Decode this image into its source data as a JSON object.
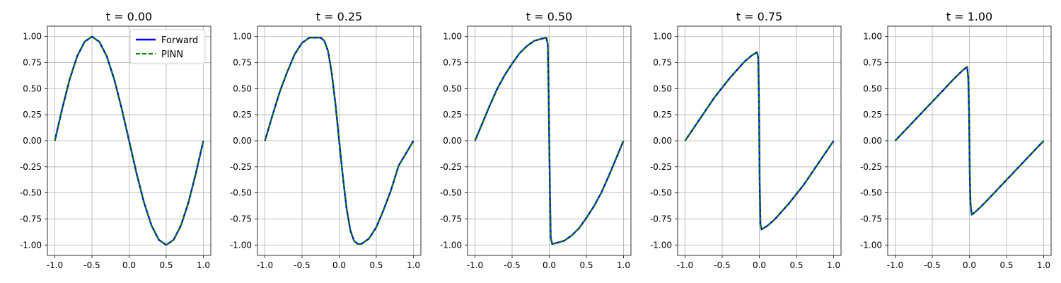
{
  "chart_data": [
    {
      "type": "line",
      "title": "t = 0.00",
      "xlabel": "",
      "ylabel": "",
      "xlim": [
        -1.1,
        1.1
      ],
      "ylim": [
        -1.1,
        1.1
      ],
      "grid": true,
      "x_ticks": [
        "-1.0",
        "-0.5",
        "0.0",
        "0.5",
        "1.0"
      ],
      "y_ticks": [
        "1.00",
        "0.75",
        "0.50",
        "0.25",
        "0.00",
        "-0.25",
        "-0.50",
        "-0.75",
        "-1.00"
      ],
      "legend": {
        "placement": "top-right",
        "entries": [
          "Forward",
          "PINN"
        ]
      },
      "series": [
        {
          "name": "Forward",
          "color": "#0000ff",
          "style": "solid",
          "x": [
            -1.0,
            -0.9,
            -0.8,
            -0.7,
            -0.6,
            -0.5,
            -0.4,
            -0.3,
            -0.2,
            -0.1,
            0.0,
            0.1,
            0.2,
            0.3,
            0.4,
            0.5,
            0.6,
            0.7,
            0.8,
            0.9,
            1.0
          ],
          "y": [
            0.0,
            0.31,
            0.59,
            0.81,
            0.95,
            1.0,
            0.95,
            0.81,
            0.59,
            0.31,
            0.0,
            -0.31,
            -0.59,
            -0.81,
            -0.95,
            -1.0,
            -0.95,
            -0.81,
            -0.59,
            -0.31,
            0.0
          ]
        },
        {
          "name": "PINN",
          "color": "#008000",
          "style": "dashed",
          "x": [
            -1.0,
            -0.9,
            -0.8,
            -0.7,
            -0.6,
            -0.5,
            -0.4,
            -0.3,
            -0.2,
            -0.1,
            0.0,
            0.1,
            0.2,
            0.3,
            0.4,
            0.5,
            0.6,
            0.7,
            0.8,
            0.9,
            1.0
          ],
          "y": [
            0.0,
            0.31,
            0.59,
            0.81,
            0.95,
            1.0,
            0.95,
            0.81,
            0.59,
            0.31,
            0.0,
            -0.31,
            -0.59,
            -0.81,
            -0.95,
            -1.0,
            -0.95,
            -0.81,
            -0.59,
            -0.31,
            0.0
          ]
        }
      ]
    },
    {
      "type": "line",
      "title": "t = 0.25",
      "xlabel": "",
      "ylabel": "",
      "xlim": [
        -1.1,
        1.1
      ],
      "ylim": [
        -1.1,
        1.1
      ],
      "grid": true,
      "x_ticks": [
        "-1.0",
        "-0.5",
        "0.0",
        "0.5",
        "1.0"
      ],
      "y_ticks": [
        "1.00",
        "0.75",
        "0.50",
        "0.25",
        "0.00",
        "-0.25",
        "-0.50",
        "-0.75",
        "-1.00"
      ],
      "series": [
        {
          "name": "Forward",
          "color": "#0000ff",
          "style": "solid",
          "x": [
            -1.0,
            -0.9,
            -0.8,
            -0.7,
            -0.6,
            -0.5,
            -0.4,
            -0.3,
            -0.25,
            -0.2,
            -0.15,
            -0.1,
            -0.05,
            0.0,
            0.05,
            0.1,
            0.15,
            0.2,
            0.25,
            0.3,
            0.4,
            0.5,
            0.6,
            0.7,
            0.8,
            0.9,
            1.0
          ],
          "y": [
            0.0,
            0.24,
            0.47,
            0.66,
            0.83,
            0.94,
            0.99,
            0.99,
            0.99,
            0.96,
            0.86,
            0.65,
            0.35,
            0.0,
            -0.35,
            -0.65,
            -0.86,
            -0.96,
            -0.99,
            -0.99,
            -0.94,
            -0.83,
            -0.66,
            -0.47,
            -0.24,
            -0.12,
            0.0
          ]
        },
        {
          "name": "PINN",
          "color": "#008000",
          "style": "dashed",
          "x": [
            -1.0,
            -0.9,
            -0.8,
            -0.7,
            -0.6,
            -0.5,
            -0.4,
            -0.3,
            -0.25,
            -0.2,
            -0.15,
            -0.1,
            -0.05,
            0.0,
            0.05,
            0.1,
            0.15,
            0.2,
            0.25,
            0.3,
            0.4,
            0.5,
            0.6,
            0.7,
            0.8,
            0.9,
            1.0
          ],
          "y": [
            0.0,
            0.24,
            0.47,
            0.66,
            0.83,
            0.94,
            0.99,
            0.99,
            0.99,
            0.96,
            0.86,
            0.65,
            0.35,
            0.0,
            -0.35,
            -0.65,
            -0.86,
            -0.96,
            -0.99,
            -0.99,
            -0.94,
            -0.83,
            -0.66,
            -0.47,
            -0.24,
            -0.12,
            0.0
          ]
        }
      ]
    },
    {
      "type": "line",
      "title": "t = 0.50",
      "xlabel": "",
      "ylabel": "",
      "xlim": [
        -1.1,
        1.1
      ],
      "ylim": [
        -1.1,
        1.1
      ],
      "grid": true,
      "x_ticks": [
        "-1.0",
        "-0.5",
        "0.0",
        "0.5",
        "1.0"
      ],
      "y_ticks": [
        "1.00",
        "0.75",
        "0.50",
        "0.25",
        "0.00",
        "-0.25",
        "-0.50",
        "-0.75",
        "-1.00"
      ],
      "series": [
        {
          "name": "Forward",
          "color": "#0000ff",
          "style": "solid",
          "x": [
            -1.0,
            -0.9,
            -0.8,
            -0.7,
            -0.6,
            -0.5,
            -0.4,
            -0.3,
            -0.2,
            -0.1,
            -0.04,
            -0.02,
            -0.01,
            0.0,
            0.01,
            0.02,
            0.04,
            0.1,
            0.2,
            0.3,
            0.4,
            0.5,
            0.6,
            0.7,
            0.8,
            0.9,
            1.0
          ],
          "y": [
            0.0,
            0.17,
            0.34,
            0.5,
            0.63,
            0.74,
            0.84,
            0.91,
            0.96,
            0.98,
            0.99,
            0.93,
            0.5,
            0.0,
            -0.5,
            -0.93,
            -0.99,
            -0.98,
            -0.96,
            -0.91,
            -0.84,
            -0.74,
            -0.63,
            -0.5,
            -0.34,
            -0.17,
            0.0
          ]
        },
        {
          "name": "PINN",
          "color": "#008000",
          "style": "dashed",
          "x": [
            -1.0,
            -0.9,
            -0.8,
            -0.7,
            -0.6,
            -0.5,
            -0.4,
            -0.3,
            -0.2,
            -0.1,
            -0.04,
            -0.02,
            -0.01,
            0.0,
            0.01,
            0.02,
            0.04,
            0.1,
            0.2,
            0.3,
            0.4,
            0.5,
            0.6,
            0.7,
            0.8,
            0.9,
            1.0
          ],
          "y": [
            0.0,
            0.17,
            0.34,
            0.5,
            0.63,
            0.74,
            0.84,
            0.91,
            0.96,
            0.98,
            0.99,
            0.93,
            0.5,
            0.0,
            -0.5,
            -0.93,
            -0.99,
            -0.98,
            -0.96,
            -0.91,
            -0.84,
            -0.74,
            -0.63,
            -0.5,
            -0.34,
            -0.17,
            0.0
          ]
        }
      ]
    },
    {
      "type": "line",
      "title": "t = 0.75",
      "xlabel": "",
      "ylabel": "",
      "xlim": [
        -1.1,
        1.1
      ],
      "ylim": [
        -1.1,
        1.1
      ],
      "grid": true,
      "x_ticks": [
        "-1.0",
        "-0.5",
        "0.0",
        "0.5",
        "1.0"
      ],
      "y_ticks": [
        "1.00",
        "0.75",
        "0.50",
        "0.25",
        "0.00",
        "-0.25",
        "-0.50",
        "-0.75",
        "-1.00"
      ],
      "series": [
        {
          "name": "Forward",
          "color": "#0000ff",
          "style": "solid",
          "x": [
            -1.0,
            -0.8,
            -0.6,
            -0.4,
            -0.2,
            -0.1,
            -0.03,
            -0.015,
            -0.005,
            0.0,
            0.005,
            0.015,
            0.03,
            0.1,
            0.2,
            0.4,
            0.6,
            0.8,
            1.0
          ],
          "y": [
            0.0,
            0.21,
            0.42,
            0.6,
            0.76,
            0.82,
            0.85,
            0.8,
            0.4,
            0.0,
            -0.4,
            -0.8,
            -0.85,
            -0.82,
            -0.76,
            -0.6,
            -0.42,
            -0.21,
            0.0
          ]
        },
        {
          "name": "PINN",
          "color": "#008000",
          "style": "dashed",
          "x": [
            -1.0,
            -0.8,
            -0.6,
            -0.4,
            -0.2,
            -0.1,
            -0.03,
            -0.015,
            -0.005,
            0.0,
            0.005,
            0.015,
            0.03,
            0.1,
            0.2,
            0.4,
            0.6,
            0.8,
            1.0
          ],
          "y": [
            0.0,
            0.21,
            0.42,
            0.6,
            0.76,
            0.82,
            0.85,
            0.8,
            0.4,
            0.0,
            -0.4,
            -0.8,
            -0.85,
            -0.82,
            -0.76,
            -0.6,
            -0.42,
            -0.21,
            0.0
          ]
        }
      ]
    },
    {
      "type": "line",
      "title": "t = 1.00",
      "xlabel": "",
      "ylabel": "",
      "xlim": [
        -1.1,
        1.1
      ],
      "ylim": [
        -1.1,
        1.1
      ],
      "grid": true,
      "x_ticks": [
        "-1.0",
        "-0.5",
        "0.0",
        "0.5",
        "1.0"
      ],
      "y_ticks": [
        "1.00",
        "0.75",
        "0.50",
        "0.25",
        "0.00",
        "-0.25",
        "-0.50",
        "-0.75",
        "-1.00"
      ],
      "series": [
        {
          "name": "Forward",
          "color": "#0000ff",
          "style": "solid",
          "x": [
            -1.0,
            -0.8,
            -0.6,
            -0.4,
            -0.2,
            -0.1,
            -0.03,
            -0.015,
            -0.005,
            0.0,
            0.005,
            0.015,
            0.03,
            0.1,
            0.2,
            0.4,
            0.6,
            0.8,
            1.0
          ],
          "y": [
            0.0,
            0.15,
            0.3,
            0.45,
            0.6,
            0.67,
            0.71,
            0.6,
            0.3,
            0.0,
            -0.3,
            -0.6,
            -0.71,
            -0.67,
            -0.6,
            -0.45,
            -0.3,
            -0.15,
            0.0
          ]
        },
        {
          "name": "PINN",
          "color": "#008000",
          "style": "dashed",
          "x": [
            -1.0,
            -0.8,
            -0.6,
            -0.4,
            -0.2,
            -0.1,
            -0.03,
            -0.015,
            -0.005,
            0.0,
            0.005,
            0.015,
            0.03,
            0.1,
            0.2,
            0.4,
            0.6,
            0.8,
            1.0
          ],
          "y": [
            0.0,
            0.15,
            0.3,
            0.45,
            0.6,
            0.67,
            0.71,
            0.6,
            0.3,
            0.0,
            -0.3,
            -0.6,
            -0.71,
            -0.67,
            -0.6,
            -0.45,
            -0.3,
            -0.15,
            0.0
          ]
        }
      ]
    }
  ]
}
